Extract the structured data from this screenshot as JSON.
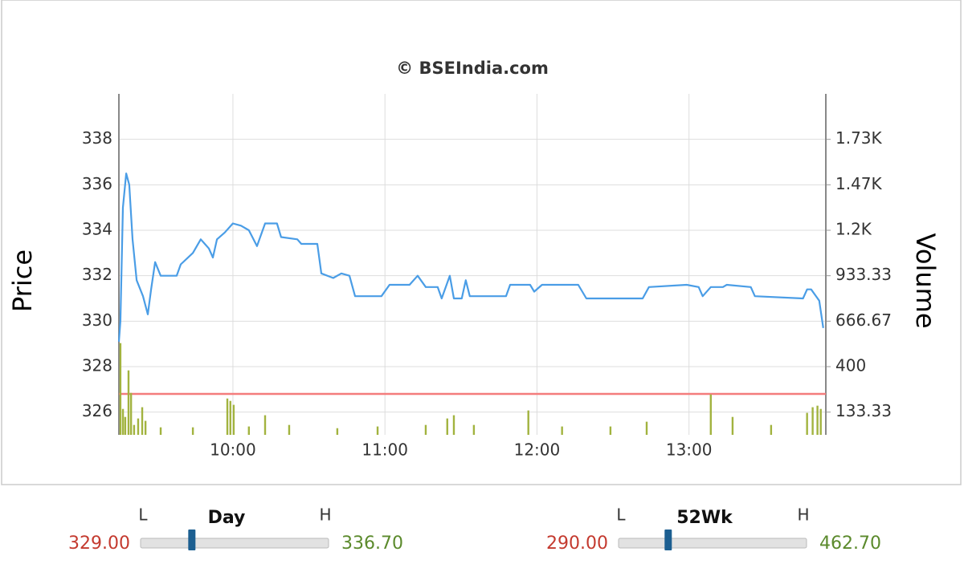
{
  "chart_data": {
    "type": "line",
    "title": "© BSEIndia.com",
    "y_label": "Price",
    "y2_label": "Volume",
    "xlim": [
      555,
      834
    ],
    "xticks": [
      {
        "value": 600,
        "label": "10:00"
      },
      {
        "value": 660,
        "label": "11:00"
      },
      {
        "value": 720,
        "label": "12:00"
      },
      {
        "value": 780,
        "label": "13:00"
      }
    ],
    "ylim": [
      325,
      340
    ],
    "yticks": [
      326,
      328,
      330,
      332,
      334,
      336,
      338
    ],
    "y2lim": [
      0,
      2000
    ],
    "y2ticks": [
      {
        "value": 133.33,
        "label": "133.33"
      },
      {
        "value": 400,
        "label": "400"
      },
      {
        "value": 666.67,
        "label": "666.67"
      },
      {
        "value": 933.33,
        "label": "933.33"
      },
      {
        "value": 1200,
        "label": "1.2K"
      },
      {
        "value": 1466.67,
        "label": "1.47K"
      },
      {
        "value": 1733.33,
        "label": "1.73K"
      }
    ],
    "grid": true,
    "reference_line": {
      "value": 326.8,
      "color": "#f47c7c"
    },
    "series": [
      {
        "type": "line",
        "color": "#4a9de6",
        "x": [
          555.0,
          555.6,
          556.6,
          557.9,
          559.1,
          560.4,
          562.0,
          564.5,
          566.4,
          567.7,
          569.3,
          571.5,
          577.8,
          579.4,
          584.2,
          587.3,
          590.5,
          592.1,
          593.7,
          596.8,
          600.0,
          603.2,
          606.3,
          609.5,
          612.7,
          617.4,
          619.0,
          625.4,
          627.0,
          633.3,
          634.9,
          639.6,
          642.8,
          646.0,
          648.2,
          658.6,
          661.8,
          669.7,
          672.9,
          676.1,
          680.8,
          682.4,
          685.6,
          687.2,
          690.3,
          691.9,
          693.5,
          707.8,
          709.4,
          717.3,
          718.9,
          722.0,
          736.3,
          739.5,
          761.7,
          764.2,
          779.1,
          783.8,
          785.4,
          788.6,
          793.4,
          794.9,
          804.4,
          806.0,
          825.0,
          826.6,
          828.2,
          831.4,
          833.0
        ],
        "values": [
          329.1,
          330.0,
          335.0,
          336.5,
          336.0,
          333.6,
          331.8,
          331.1,
          330.3,
          331.4,
          332.6,
          332.0,
          332.0,
          332.5,
          333.0,
          333.6,
          333.2,
          332.8,
          333.6,
          333.9,
          334.3,
          334.2,
          334.0,
          333.3,
          334.3,
          334.3,
          333.7,
          333.6,
          333.4,
          333.4,
          332.1,
          331.9,
          332.1,
          332.0,
          331.1,
          331.1,
          331.6,
          331.6,
          332.0,
          331.5,
          331.5,
          331.0,
          332.0,
          331.0,
          331.0,
          331.8,
          331.1,
          331.1,
          331.6,
          331.6,
          331.3,
          331.6,
          331.6,
          331.0,
          331.0,
          331.5,
          331.6,
          331.5,
          331.1,
          331.5,
          331.5,
          331.6,
          331.5,
          331.1,
          331.0,
          331.4,
          331.4,
          330.9,
          329.7
        ]
      },
      {
        "type": "bar",
        "axis": "y2",
        "color": "#a2b33f",
        "x": [
          555.6,
          556.6,
          557.5,
          558.8,
          559.8,
          561.0,
          562.6,
          564.2,
          565.5,
          571.5,
          584.2,
          597.8,
          599.0,
          600.3,
          606.3,
          612.7,
          622.2,
          641.2,
          657.1,
          676.1,
          684.6,
          687.2,
          695.1,
          716.6,
          729.9,
          749.0,
          763.3,
          788.6,
          797.2,
          812.4,
          826.6,
          828.8,
          830.7,
          832.0
        ],
        "values": [
          538,
          152,
          105,
          378,
          246,
          58,
          96,
          162,
          82,
          44,
          44,
          213,
          199,
          176,
          49,
          115,
          58,
          39,
          49,
          58,
          96,
          115,
          58,
          143,
          49,
          49,
          77,
          237,
          105,
          58,
          129,
          162,
          171,
          152
        ]
      }
    ]
  },
  "range_widgets": [
    {
      "title": "Day",
      "low_mark": "L",
      "high_mark": "H",
      "low": {
        "value": 329,
        "label": "329.00"
      },
      "high": {
        "value": 336.7,
        "label": "336.70"
      },
      "marker": 331.1
    },
    {
      "title": "52Wk",
      "low_mark": "L",
      "high_mark": "H",
      "low": {
        "value": 290,
        "label": "290.00"
      },
      "high": {
        "value": 462.7,
        "label": "462.70"
      },
      "marker": 335.6
    }
  ]
}
